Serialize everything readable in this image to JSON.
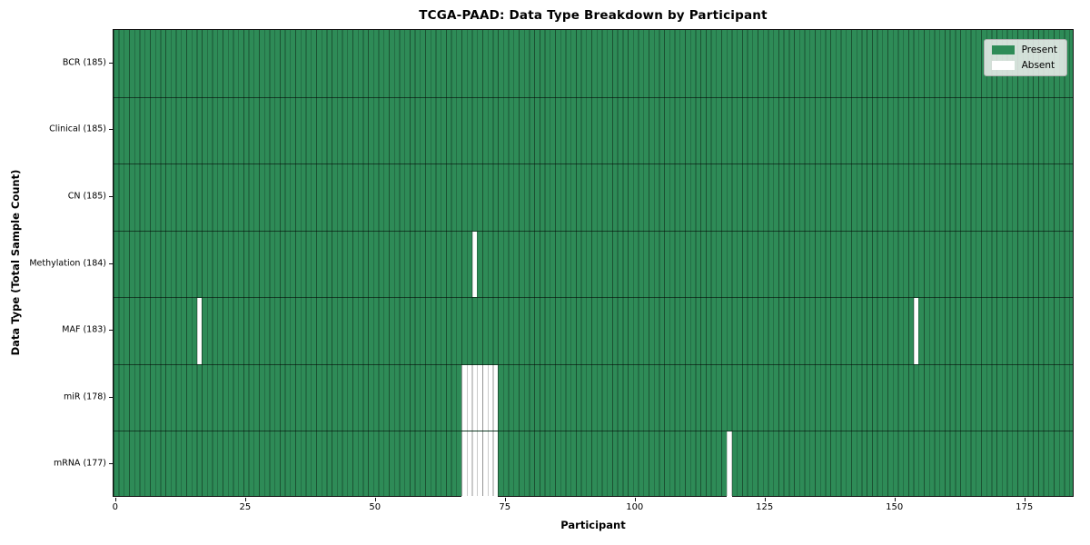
{
  "chart_data": {
    "type": "heatmap",
    "title": "TCGA-PAAD: Data Type Breakdown by Participant",
    "xlabel": "Participant",
    "ylabel": "Data Type (Total Sample Count)",
    "x_ticks": [
      0,
      25,
      50,
      75,
      100,
      125,
      150,
      175
    ],
    "xlim": [
      -0.5,
      184.5
    ],
    "n_participants": 185,
    "grid": "per-bar vertical edges and row separator lines",
    "legend_position": "upper right",
    "colors": {
      "present": "#2e8b57",
      "absent": "#ffffff",
      "bar_edge_on_green": "#1d4f33",
      "bar_edge_on_white": "#a8a8a8",
      "spine": "#111111"
    },
    "legend": [
      {
        "label": "Present",
        "color": "#2e8b57"
      },
      {
        "label": "Absent",
        "color": "#ffffff"
      }
    ],
    "rows": [
      {
        "name": "BCR",
        "label": "BCR (185)",
        "total_samples": 185,
        "absent_participants": []
      },
      {
        "name": "Clinical",
        "label": "Clinical (185)",
        "total_samples": 185,
        "absent_participants": []
      },
      {
        "name": "CN",
        "label": "CN (185)",
        "total_samples": 185,
        "absent_participants": []
      },
      {
        "name": "Methylation",
        "label": "Methylation (184)",
        "total_samples": 184,
        "absent_participants": [
          69
        ]
      },
      {
        "name": "MAF",
        "label": "MAF (183)",
        "total_samples": 183,
        "absent_participants": [
          16,
          154
        ]
      },
      {
        "name": "miR",
        "label": "miR (178)",
        "total_samples": 178,
        "absent_participants": [
          67,
          68,
          69,
          70,
          71,
          72,
          73
        ]
      },
      {
        "name": "mRNA",
        "label": "mRNA (177)",
        "total_samples": 177,
        "absent_participants": [
          67,
          68,
          69,
          70,
          71,
          72,
          73,
          118
        ]
      }
    ]
  }
}
